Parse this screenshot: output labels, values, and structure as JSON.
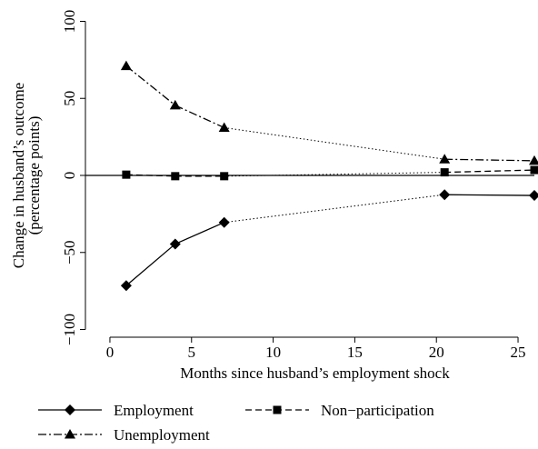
{
  "chart_data": {
    "type": "line",
    "title": "",
    "xlabel": "Months since husband’s employment shock",
    "ylabel_line1": "Change in husband’s outcome",
    "ylabel_line2": "(percentage points)",
    "xlim": [
      -1.5,
      26
    ],
    "ylim": [
      -105,
      105
    ],
    "xticks": [
      0,
      5,
      10,
      15,
      20,
      25
    ],
    "xtick_labels": [
      "0",
      "5",
      "10",
      "15",
      "20",
      "25"
    ],
    "yticks": [
      -100,
      -50,
      0,
      50,
      100
    ],
    "ytick_labels": [
      "−100",
      "−50",
      "0",
      "50",
      "100"
    ],
    "zero_line": true,
    "grid": false,
    "legend_position": "bottom",
    "series": [
      {
        "name": "Employment",
        "marker": "diamond",
        "line_style": "solid",
        "x": [
          1,
          4,
          7,
          20.5,
          26
        ],
        "y": [
          -71.5,
          -44.5,
          -30.5,
          -12.5,
          -13
        ]
      },
      {
        "name": "Non−participation",
        "marker": "square",
        "line_style": "dashed",
        "x": [
          1,
          4,
          7,
          20.5,
          26
        ],
        "y": [
          0.5,
          -0.5,
          -0.5,
          2,
          3.5
        ]
      },
      {
        "name": "Unemployment",
        "marker": "triangle",
        "line_style": "dashdot",
        "x": [
          1,
          4,
          7,
          20.5,
          26
        ],
        "y": [
          71,
          45.5,
          31,
          10.5,
          9.5
        ]
      }
    ],
    "bridge_style": "dotted",
    "bridge_between_x": [
      7,
      20.5
    ]
  }
}
